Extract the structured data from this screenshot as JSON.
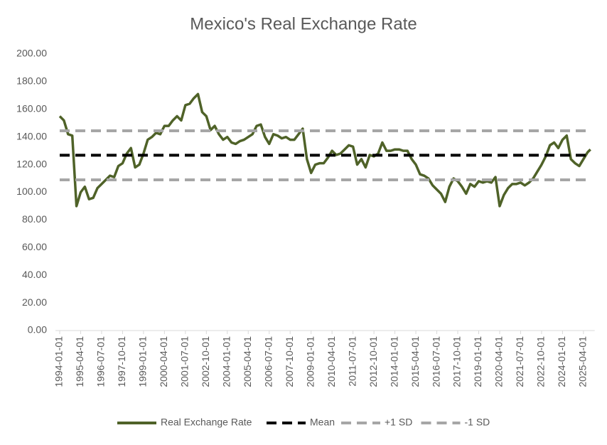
{
  "chart_data": {
    "type": "line",
    "title": "Mexico's Real Exchange Rate",
    "x": [
      "1994-01-01",
      "1994-04-01",
      "1994-07-01",
      "1994-10-01",
      "1995-01-01",
      "1995-04-01",
      "1995-07-01",
      "1995-10-01",
      "1996-01-01",
      "1996-04-01",
      "1996-07-01",
      "1996-10-01",
      "1997-01-01",
      "1997-04-01",
      "1997-07-01",
      "1997-10-01",
      "1998-01-01",
      "1998-04-01",
      "1998-07-01",
      "1998-10-01",
      "1999-01-01",
      "1999-04-01",
      "1999-07-01",
      "1999-10-01",
      "2000-01-01",
      "2000-04-01",
      "2000-07-01",
      "2000-10-01",
      "2001-01-01",
      "2001-04-01",
      "2001-07-01",
      "2001-10-01",
      "2002-01-01",
      "2002-04-01",
      "2002-07-01",
      "2002-10-01",
      "2003-01-01",
      "2003-04-01",
      "2003-07-01",
      "2003-10-01",
      "2004-01-01",
      "2004-04-01",
      "2004-07-01",
      "2004-10-01",
      "2005-01-01",
      "2005-04-01",
      "2005-07-01",
      "2005-10-01",
      "2006-01-01",
      "2006-04-01",
      "2006-07-01",
      "2006-10-01",
      "2007-01-01",
      "2007-04-01",
      "2007-07-01",
      "2007-10-01",
      "2008-01-01",
      "2008-04-01",
      "2008-07-01",
      "2008-10-01",
      "2009-01-01",
      "2009-04-01",
      "2009-07-01",
      "2009-10-01",
      "2010-01-01",
      "2010-04-01",
      "2010-07-01",
      "2010-10-01",
      "2011-01-01",
      "2011-04-01",
      "2011-07-01",
      "2011-10-01",
      "2012-01-01",
      "2012-04-01",
      "2012-07-01",
      "2012-10-01",
      "2013-01-01",
      "2013-04-01",
      "2013-07-01",
      "2013-10-01",
      "2014-01-01",
      "2014-04-01",
      "2014-07-01",
      "2014-10-01",
      "2015-01-01",
      "2015-04-01",
      "2015-07-01",
      "2015-10-01",
      "2016-01-01",
      "2016-04-01",
      "2016-07-01",
      "2016-10-01",
      "2017-01-01",
      "2017-04-01",
      "2017-07-01",
      "2017-10-01",
      "2018-01-01",
      "2018-04-01",
      "2018-07-01",
      "2018-10-01",
      "2019-01-01",
      "2019-04-01",
      "2019-07-01",
      "2019-10-01",
      "2020-01-01",
      "2020-04-01",
      "2020-07-01",
      "2020-10-01",
      "2021-01-01",
      "2021-04-01",
      "2021-07-01",
      "2021-10-01",
      "2022-01-01",
      "2022-04-01",
      "2022-07-01",
      "2022-10-01",
      "2023-01-01",
      "2023-04-01",
      "2023-07-01",
      "2023-10-01",
      "2024-01-01",
      "2024-04-01",
      "2024-07-01",
      "2024-10-01",
      "2025-01-01",
      "2025-04-01",
      "2025-07-01",
      "2025-09-01"
    ],
    "series": [
      {
        "name": "Real Exchange Rate",
        "color": "#4f6228",
        "values": [
          155,
          152,
          142,
          141,
          90,
          100,
          104,
          95,
          96,
          103,
          106,
          109,
          112,
          111,
          119,
          121,
          128,
          132,
          118,
          120,
          128,
          138,
          140,
          143,
          142,
          148,
          148,
          152,
          155,
          152,
          163,
          164,
          168,
          171,
          158,
          155,
          145,
          148,
          142,
          138,
          140,
          136,
          135,
          137,
          138,
          140,
          142,
          148,
          149,
          140,
          135,
          142,
          141,
          139,
          140,
          138,
          138,
          142,
          146,
          124,
          114,
          120,
          121,
          121,
          125,
          130,
          127,
          128,
          131,
          134,
          133,
          120,
          124,
          118,
          127,
          126,
          128,
          136,
          130,
          130,
          131,
          131,
          130,
          130,
          124,
          120,
          113,
          112,
          110,
          105,
          102,
          99,
          93,
          104,
          110,
          108,
          104,
          99,
          106,
          104,
          108,
          107,
          108,
          107,
          111,
          90,
          98,
          103,
          106,
          106,
          107,
          105,
          107,
          110,
          115,
          120,
          126,
          134,
          136,
          132,
          138,
          141,
          124,
          121,
          119,
          124,
          129,
          131
        ]
      },
      {
        "name": "Mean",
        "color": "#000000",
        "value": 126.8,
        "dash": "14 8"
      },
      {
        "name": "+1 SD",
        "color": "#a6a6a6",
        "value": 144.5,
        "dash": "14 8"
      },
      {
        "name": "-1 SD",
        "color": "#a6a6a6",
        "value": 109,
        "dash": "14 8"
      }
    ],
    "xlim": [
      "1994-01-01",
      "2025-09-01"
    ],
    "xticks": [
      "1994-01-01",
      "1995-04-01",
      "1996-07-01",
      "1997-10-01",
      "1999-01-01",
      "2000-04-01",
      "2001-07-01",
      "2002-10-01",
      "2004-01-01",
      "2005-04-01",
      "2006-07-01",
      "2007-10-01",
      "2009-01-01",
      "2010-04-01",
      "2011-07-01",
      "2012-10-01",
      "2014-01-01",
      "2015-04-01",
      "2016-07-01",
      "2017-10-01",
      "2019-01-01",
      "2020-04-01",
      "2021-07-01",
      "2022-10-01",
      "2024-01-01",
      "2025-04-01"
    ],
    "ylim": [
      0,
      200
    ],
    "yticks": [
      {
        "value": 0,
        "label": "0.00"
      },
      {
        "value": 20,
        "label": "20.00"
      },
      {
        "value": 40,
        "label": "40.00"
      },
      {
        "value": 60,
        "label": "60.00"
      },
      {
        "value": 80,
        "label": "80.00"
      },
      {
        "value": 100,
        "label": "100.00"
      },
      {
        "value": 120,
        "label": "120.00"
      },
      {
        "value": 140,
        "label": "140.00"
      },
      {
        "value": 160,
        "label": "160.00"
      },
      {
        "value": 180,
        "label": "180.00"
      },
      {
        "value": 200,
        "label": "200.00"
      }
    ],
    "grid": false,
    "legend": "bottom"
  }
}
